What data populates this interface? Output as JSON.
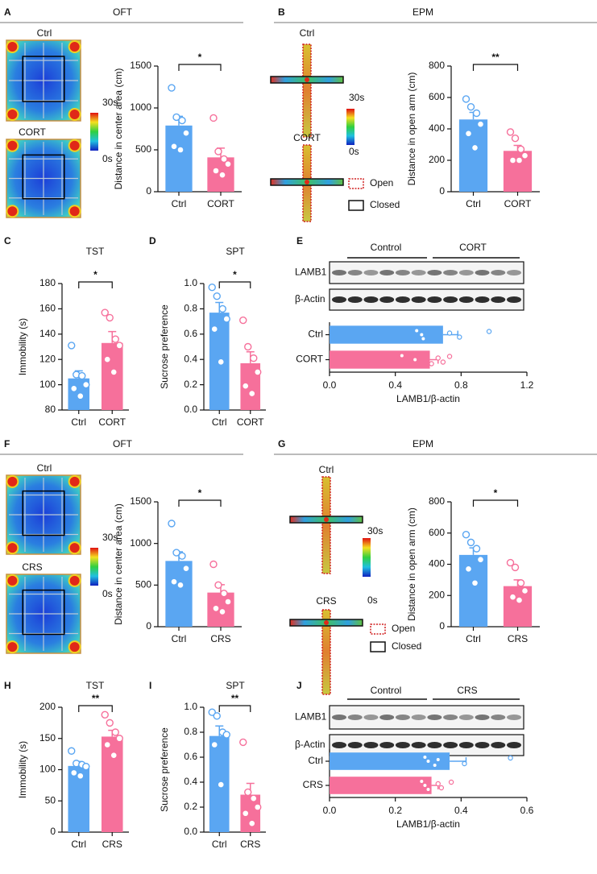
{
  "chart_data": [
    {
      "type": "bar",
      "panel": "A",
      "title": "OFT",
      "maps": [
        "Ctrl",
        "CORT"
      ],
      "scale": [
        "30s",
        "0s"
      ],
      "categories": [
        "Ctrl",
        "CORT"
      ],
      "values": [
        790,
        410
      ],
      "errors": [
        110,
        110
      ],
      "points": [
        [
          1240,
          890,
          850,
          700,
          540,
          500
        ],
        [
          880,
          480,
          390,
          330,
          250,
          200
        ]
      ],
      "colors": [
        "#5aa6f2",
        "#f6709b"
      ],
      "ylim": [
        0,
        1500
      ],
      "yticks": [
        0,
        500,
        1000,
        1500
      ],
      "ylabel": "Distance in center area (cm)",
      "significance": "*"
    },
    {
      "type": "bar",
      "panel": "B",
      "title": "EPM",
      "maps": [
        "Ctrl",
        "CORT"
      ],
      "scale": [
        "30s",
        "0s"
      ],
      "legend": [
        "Open",
        "Closed"
      ],
      "categories": [
        "Ctrl",
        "CORT"
      ],
      "values": [
        460,
        260
      ],
      "errors": [
        45,
        35
      ],
      "points": [
        [
          590,
          540,
          500,
          430,
          370,
          280
        ],
        [
          380,
          340,
          270,
          230,
          200,
          200
        ]
      ],
      "colors": [
        "#5aa6f2",
        "#f6709b"
      ],
      "ylim": [
        0,
        800
      ],
      "yticks": [
        0,
        200,
        400,
        600,
        800
      ],
      "ylabel": "Distance in open arm (cm)",
      "significance": "**"
    },
    {
      "type": "bar",
      "panel": "C",
      "title": "TST",
      "categories": [
        "Ctrl",
        "CORT"
      ],
      "values": [
        105,
        133
      ],
      "errors": [
        6,
        9
      ],
      "points": [
        [
          131,
          108,
          107,
          100,
          97,
          91
        ],
        [
          157,
          153,
          136,
          131,
          120,
          110
        ]
      ],
      "colors": [
        "#5aa6f2",
        "#f6709b"
      ],
      "ylim": [
        80,
        180
      ],
      "yticks": [
        80,
        100,
        120,
        140,
        160,
        180
      ],
      "ylabel": "Immobility (s)",
      "significance": "*"
    },
    {
      "type": "bar",
      "panel": "D",
      "title": "SPT",
      "categories": [
        "Ctrl",
        "CORT"
      ],
      "values": [
        0.77,
        0.37
      ],
      "errors": [
        0.08,
        0.09
      ],
      "points": [
        [
          0.97,
          0.9,
          0.8,
          0.72,
          0.64,
          0.38
        ],
        [
          0.71,
          0.5,
          0.41,
          0.3,
          0.19,
          0.13
        ]
      ],
      "colors": [
        "#5aa6f2",
        "#f6709b"
      ],
      "ylim": [
        0,
        1
      ],
      "yticks": [
        {
          "value": 0,
          "label": "0.0"
        },
        0.2,
        0.4,
        0.6,
        0.8,
        {
          "value": 1,
          "label": "1.0"
        }
      ],
      "ylabel": "Sucrose preference",
      "significance": "*"
    },
    {
      "type": "barh",
      "panel": "E",
      "blot": {
        "groups": [
          "Control",
          "CORT"
        ],
        "rows": [
          "LAMB1",
          "β-Actin"
        ]
      },
      "categories": [
        "Ctrl",
        "CORT"
      ],
      "values": [
        0.69,
        0.61
      ],
      "errors": [
        0.09,
        0.05
      ],
      "points": [
        [
          0.97,
          0.79,
          0.73,
          0.57,
          0.56,
          0.53
        ],
        [
          0.73,
          0.69,
          0.66,
          0.62,
          0.52,
          0.44
        ]
      ],
      "colors": [
        "#5aa6f2",
        "#f6709b"
      ],
      "xlim": [
        0,
        1.2
      ],
      "xticks": [
        {
          "value": 0,
          "label": "0.0"
        },
        0.4,
        0.8,
        1.2
      ],
      "xlabel": "LAMB1/β-actin"
    },
    {
      "type": "bar",
      "panel": "F",
      "title": "OFT",
      "maps": [
        "Ctrl",
        "CRS"
      ],
      "scale": [
        "30s",
        "0s"
      ],
      "categories": [
        "Ctrl",
        "CRS"
      ],
      "values": [
        790,
        410
      ],
      "errors": [
        110,
        95
      ],
      "points": [
        [
          1240,
          890,
          850,
          700,
          540,
          500
        ],
        [
          750,
          500,
          400,
          300,
          220,
          180
        ]
      ],
      "colors": [
        "#5aa6f2",
        "#f6709b"
      ],
      "ylim": [
        0,
        1500
      ],
      "yticks": [
        0,
        500,
        1000,
        1500
      ],
      "ylabel": "Distance in center area (cm)",
      "significance": "*"
    },
    {
      "type": "bar",
      "panel": "G",
      "title": "EPM",
      "maps": [
        "Ctrl",
        "CRS"
      ],
      "scale": [
        "30s",
        "0s"
      ],
      "legend": [
        "Open",
        "Closed"
      ],
      "categories": [
        "Ctrl",
        "CRS"
      ],
      "values": [
        460,
        260
      ],
      "errors": [
        45,
        40
      ],
      "points": [
        [
          590,
          540,
          500,
          430,
          370,
          280
        ],
        [
          410,
          380,
          280,
          230,
          190,
          170
        ]
      ],
      "colors": [
        "#5aa6f2",
        "#f6709b"
      ],
      "ylim": [
        0,
        800
      ],
      "yticks": [
        0,
        200,
        400,
        600,
        800
      ],
      "ylabel": "Distance in open arm (cm)",
      "significance": "*"
    },
    {
      "type": "bar",
      "panel": "H",
      "title": "TST",
      "categories": [
        "Ctrl",
        "CRS"
      ],
      "values": [
        106,
        153
      ],
      "errors": [
        7,
        10
      ],
      "points": [
        [
          130,
          110,
          108,
          105,
          95,
          90
        ],
        [
          188,
          175,
          160,
          150,
          140,
          123
        ]
      ],
      "colors": [
        "#5aa6f2",
        "#f6709b"
      ],
      "ylim": [
        0,
        200
      ],
      "yticks": [
        0,
        50,
        100,
        150,
        200
      ],
      "ylabel": "Immobility (s)",
      "significance": "**"
    },
    {
      "type": "bar",
      "panel": "I",
      "title": "SPT",
      "categories": [
        "Ctrl",
        "CRS"
      ],
      "values": [
        0.77,
        0.3
      ],
      "errors": [
        0.08,
        0.09
      ],
      "points": [
        [
          0.96,
          0.93,
          0.8,
          0.78,
          0.7,
          0.38
        ],
        [
          0.72,
          0.32,
          0.27,
          0.2,
          0.15,
          0.07
        ]
      ],
      "colors": [
        "#5aa6f2",
        "#f6709b"
      ],
      "ylim": [
        0,
        1
      ],
      "yticks": [
        {
          "value": 0,
          "label": "0.0"
        },
        0.2,
        0.4,
        0.6,
        0.8,
        {
          "value": 1,
          "label": "1.0"
        }
      ],
      "ylabel": "Sucrose preference",
      "significance": "**"
    },
    {
      "type": "barh",
      "panel": "J",
      "blot": {
        "groups": [
          "Control",
          "CRS"
        ],
        "rows": [
          "LAMB1",
          "β-Actin"
        ]
      },
      "categories": [
        "Ctrl",
        "CRS"
      ],
      "values": [
        0.365,
        0.31
      ],
      "errors": [
        0.05,
        0.02
      ],
      "points": [
        [
          0.55,
          0.41,
          0.33,
          0.32,
          0.3,
          0.29
        ],
        [
          0.37,
          0.34,
          0.33,
          0.3,
          0.29,
          0.28
        ]
      ],
      "colors": [
        "#5aa6f2",
        "#f6709b"
      ],
      "xlim": [
        0,
        0.6
      ],
      "xticks": [
        {
          "value": 0,
          "label": "0.0"
        },
        0.2,
        0.4,
        0.6
      ],
      "xlabel": "LAMB1/β-actin"
    }
  ]
}
